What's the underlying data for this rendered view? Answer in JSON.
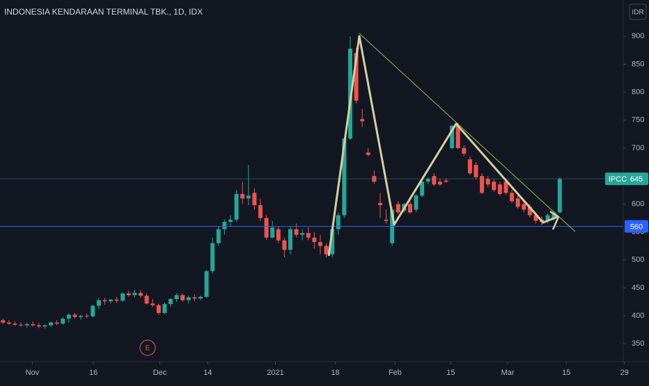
{
  "chart_data": {
    "type": "candlestick",
    "title": "INDONESIA KENDARAAN TERMINAL TBK., 1D, IDX",
    "currency": "IDR",
    "event_marker": "E",
    "up_color": "#26a69a",
    "down_color": "#ef5350",
    "grid": false,
    "ylim": [
      318,
      965
    ],
    "yticks": [
      350,
      400,
      450,
      500,
      550,
      600,
      650,
      700,
      750,
      800,
      850,
      900
    ],
    "xlim": [
      -0.5,
      103.6
    ],
    "xticks": [
      {
        "value": 4.9,
        "label": "Nov"
      },
      {
        "value": 15.1,
        "label": "16"
      },
      {
        "value": 26.2,
        "label": "Dec"
      },
      {
        "value": 34.2,
        "label": "14"
      },
      {
        "value": 45.5,
        "label": "2021"
      },
      {
        "value": 55.5,
        "label": "18"
      },
      {
        "value": 65.5,
        "label": "Feb"
      },
      {
        "value": 74.8,
        "label": "15"
      },
      {
        "value": 84.3,
        "label": "Mar"
      },
      {
        "value": 94.1,
        "label": "15"
      },
      {
        "value": 103.8,
        "label": "29"
      }
    ],
    "x": [
      0,
      1,
      2,
      3,
      4,
      5,
      6,
      7,
      8,
      9,
      10,
      11,
      12,
      13,
      14,
      15,
      16,
      17,
      18,
      19,
      20,
      21,
      22,
      23,
      24,
      25,
      26,
      27,
      28,
      29,
      30,
      31,
      32,
      33,
      34,
      35,
      36,
      37,
      38,
      39,
      40,
      41,
      42,
      43,
      44,
      45,
      46,
      47,
      48,
      49,
      50,
      51,
      52,
      53,
      54,
      55,
      56,
      57,
      58,
      59,
      60,
      61,
      62,
      63,
      64,
      65,
      66,
      67,
      68,
      69,
      70,
      71,
      72,
      73,
      74,
      75,
      76,
      77,
      78,
      79,
      80,
      81,
      82,
      83,
      84,
      85,
      86,
      87,
      88,
      89,
      90,
      91,
      92,
      93
    ],
    "open": [
      392,
      388,
      386,
      384,
      383,
      385,
      383,
      381,
      383,
      388,
      386,
      395,
      402,
      398,
      400,
      399,
      418,
      428,
      426,
      429,
      427,
      440,
      437,
      441,
      436,
      422,
      419,
      405,
      421,
      430,
      437,
      428,
      433,
      431,
      434,
      480,
      530,
      555,
      568,
      572,
      618,
      610,
      620,
      598,
      575,
      540,
      555,
      535,
      518,
      555,
      545,
      548,
      540,
      532,
      525,
      510,
      555,
      580,
      717,
      870,
      752,
      692,
      650,
      602,
      572,
      530,
      600,
      588,
      600,
      590,
      615,
      640,
      650,
      640,
      642,
      700,
      740,
      700,
      680,
      670,
      650,
      645,
      640,
      635,
      640,
      620,
      610,
      600,
      595,
      580,
      572,
      570,
      575,
      585
    ],
    "high": [
      395,
      392,
      390,
      388,
      388,
      390,
      387,
      385,
      390,
      392,
      398,
      405,
      405,
      402,
      404,
      420,
      432,
      432,
      430,
      434,
      442,
      445,
      447,
      446,
      440,
      430,
      422,
      424,
      432,
      440,
      440,
      436,
      438,
      436,
      482,
      540,
      560,
      572,
      580,
      625,
      640,
      670,
      628,
      610,
      580,
      570,
      560,
      540,
      560,
      565,
      555,
      558,
      550,
      545,
      530,
      560,
      585,
      720,
      900,
      880,
      770,
      700,
      660,
      620,
      590,
      595,
      605,
      602,
      605,
      618,
      642,
      648,
      655,
      645,
      646,
      742,
      745,
      705,
      685,
      675,
      655,
      650,
      645,
      640,
      645,
      625,
      615,
      605,
      600,
      585,
      578,
      583,
      588,
      648
    ],
    "low": [
      385,
      384,
      382,
      380,
      379,
      381,
      378,
      377,
      380,
      383,
      384,
      388,
      395,
      393,
      396,
      397,
      412,
      420,
      422,
      423,
      425,
      434,
      433,
      432,
      420,
      416,
      402,
      403,
      416,
      425,
      425,
      422,
      426,
      428,
      432,
      476,
      525,
      545,
      560,
      568,
      600,
      598,
      590,
      570,
      536,
      538,
      530,
      505,
      510,
      540,
      535,
      535,
      520,
      510,
      505,
      505,
      545,
      575,
      715,
      780,
      738,
      685,
      636,
      575,
      565,
      525,
      582,
      585,
      582,
      586,
      612,
      636,
      632,
      632,
      638,
      698,
      698,
      686,
      652,
      644,
      618,
      630,
      622,
      615,
      616,
      602,
      592,
      585,
      576,
      565,
      562,
      565,
      570,
      583
    ],
    "close": [
      388,
      386,
      384,
      383,
      385,
      383,
      381,
      383,
      388,
      386,
      395,
      402,
      398,
      400,
      399,
      418,
      428,
      426,
      429,
      427,
      440,
      437,
      441,
      436,
      422,
      419,
      405,
      421,
      430,
      437,
      428,
      433,
      431,
      434,
      480,
      530,
      555,
      568,
      572,
      618,
      610,
      615,
      598,
      575,
      540,
      558,
      535,
      518,
      555,
      545,
      548,
      540,
      532,
      525,
      510,
      555,
      580,
      717,
      878,
      785,
      748,
      688,
      640,
      598,
      570,
      590,
      585,
      600,
      585,
      615,
      640,
      645,
      635,
      635,
      640,
      740,
      700,
      690,
      655,
      648,
      620,
      635,
      625,
      618,
      620,
      605,
      595,
      590,
      580,
      570,
      568,
      580,
      585,
      645
    ],
    "price_lines": [
      {
        "label": "560",
        "value": 560,
        "color": "#2962ff"
      },
      {
        "name": "IPCC",
        "label": "645",
        "value": 645,
        "color": "#26a69a"
      }
    ]
  }
}
